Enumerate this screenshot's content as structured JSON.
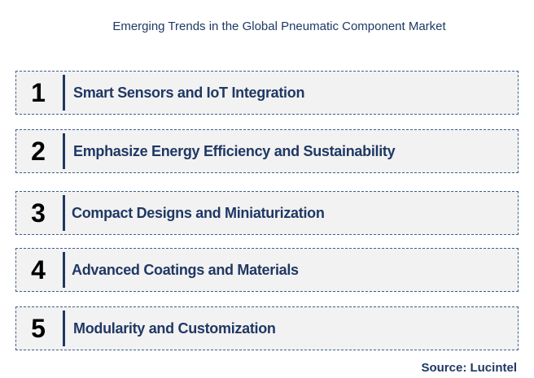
{
  "title": "Emerging Trends in the Global Pneumatic Component Market",
  "items": [
    {
      "number": "1",
      "label": "Smart Sensors and IoT Integration"
    },
    {
      "number": "2",
      "label": "Emphasize Energy Efficiency and Sustainability"
    },
    {
      "number": "3",
      "label": "Compact Designs and Miniaturization"
    },
    {
      "number": "4",
      "label": "Advanced Coatings and Materials"
    },
    {
      "number": "5",
      "label": "Modularity and Customization"
    }
  ],
  "source": "Source: Lucintel",
  "colors": {
    "accent": "#1f3864",
    "box_fill": "#f2f2f2"
  }
}
